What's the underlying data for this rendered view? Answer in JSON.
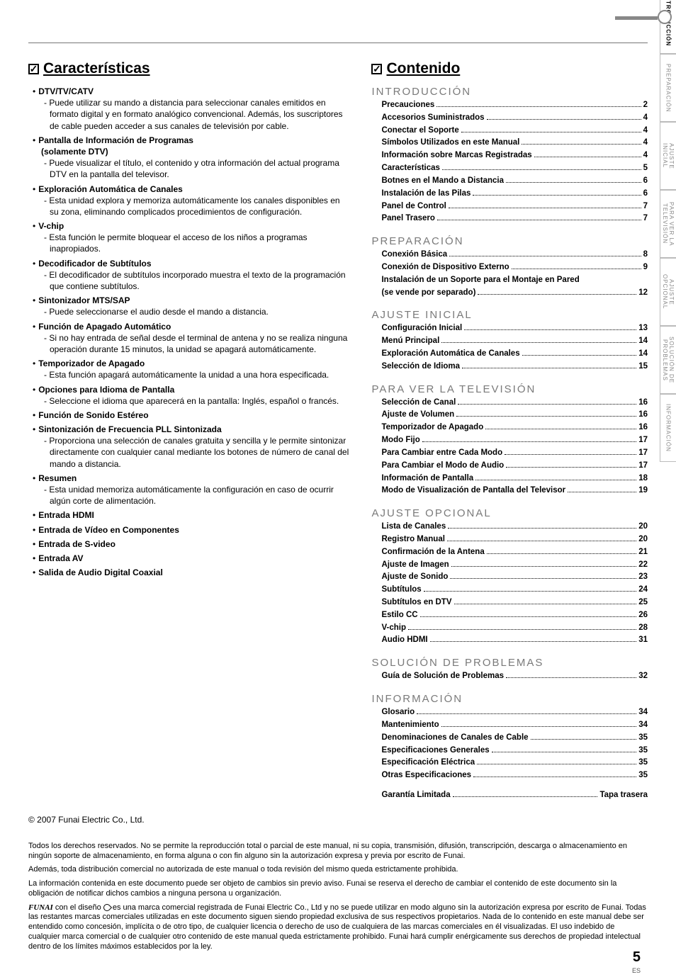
{
  "headings": {
    "features": "Características",
    "contents": "Contenido"
  },
  "features": [
    {
      "title": "DTV/TV/CATV",
      "desc": "- Puede utilizar su mando a distancia para seleccionar canales emitidos en formato digital y en formato analógico convencional. Además, los suscriptores de cable pueden acceder a sus canales de televisión por cable."
    },
    {
      "title": "Pantalla de Información de Programas",
      "sub": "(solamente DTV)",
      "desc": "- Puede visualizar el título, el contenido y otra información del actual programa DTV en la pantalla del televisor."
    },
    {
      "title": "Exploración Automática de Canales",
      "desc": "- Esta unidad explora y memoriza automáticamente los canales disponibles en su zona, eliminando complicados procedimientos de configuración."
    },
    {
      "title": "V-chip",
      "desc": "- Esta función le permite bloquear el acceso de los niños a programas inapropiados."
    },
    {
      "title": "Decodificador de Subtítulos",
      "desc": "- El decodificador de subtítulos incorporado muestra el texto de la programación que contiene subtítulos."
    },
    {
      "title": "Sintonizador MTS/SAP",
      "desc": "- Puede seleccionarse el audio desde el mando a distancia."
    },
    {
      "title": "Función de Apagado Automático",
      "desc": "- Si no hay entrada de señal desde el terminal de antena y no se realiza ninguna operación durante 15 minutos, la unidad se apagará automáticamente."
    },
    {
      "title": "Temporizador de Apagado",
      "desc": "- Esta función apagará automáticamente la unidad a una hora especificada."
    },
    {
      "title": "Opciones para Idioma de Pantalla",
      "desc": "- Seleccione el idioma que aparecerá en la pantalla: Inglés, español o francés."
    },
    {
      "title": "Función de Sonido Estéreo"
    },
    {
      "title": "Sintonización de Frecuencia PLL Sintonizada",
      "desc": "- Proporciona una selección de canales gratuita y sencilla y le permite sintonizar directamente con cualquier canal mediante los botones de número de canal del mando a distancia."
    },
    {
      "title": "Resumen",
      "desc": "- Esta unidad memoriza automáticamente la configuración en caso de ocurrir algún corte de alimentación."
    },
    {
      "title": "Entrada HDMI"
    },
    {
      "title": "Entrada de Vídeo en Componentes"
    },
    {
      "title": "Entrada de S-video"
    },
    {
      "title": "Entrada AV"
    },
    {
      "title": "Salida de Audio Digital Coaxial"
    }
  ],
  "toc": [
    {
      "heading": "INTRODUCCIÓN",
      "items": [
        {
          "label": "Precauciones",
          "page": "2"
        },
        {
          "label": "Accesorios Suministrados",
          "page": "4"
        },
        {
          "label": "Conectar el Soporte",
          "page": "4"
        },
        {
          "label": "Símbolos Utilizados en este Manual",
          "page": "4"
        },
        {
          "label": "Información sobre Marcas Registradas",
          "page": "4"
        },
        {
          "label": "Características",
          "page": "5"
        },
        {
          "label": "Botnes en el Mando a Distancia",
          "page": "6"
        },
        {
          "label": "Instalación de las Pilas",
          "page": "6"
        },
        {
          "label": "Panel de Control",
          "page": "7"
        },
        {
          "label": "Panel Trasero",
          "page": "7"
        }
      ]
    },
    {
      "heading": "PREPARACIÓN",
      "items": [
        {
          "label": "Conexión Básica",
          "page": "8"
        },
        {
          "label": "Conexión de Dispositivo Externo",
          "page": "9"
        },
        {
          "label": "Instalación de un Soporte para el Montaje en Pared",
          "sub": true
        },
        {
          "label": "(se vende por separado)",
          "page": "12"
        }
      ]
    },
    {
      "heading": "AJUSTE INICIAL",
      "items": [
        {
          "label": "Configuración Inicial",
          "page": "13"
        },
        {
          "label": "Menú Principal",
          "page": "14"
        },
        {
          "label": "Exploración Automática de Canales",
          "page": "14"
        },
        {
          "label": "Selección de Idioma",
          "page": "15"
        }
      ]
    },
    {
      "heading": "PARA VER LA TELEVISIÓN",
      "items": [
        {
          "label": "Selección de Canal",
          "page": "16"
        },
        {
          "label": "Ajuste de Volumen",
          "page": "16"
        },
        {
          "label": "Temporizador de Apagado",
          "page": "16"
        },
        {
          "label": "Modo Fijo",
          "page": "17"
        },
        {
          "label": "Para Cambiar entre Cada Modo",
          "page": "17"
        },
        {
          "label": "Para Cambiar el Modo de Audio",
          "page": "17"
        },
        {
          "label": "Información de Pantalla",
          "page": "18"
        },
        {
          "label": "Modo de Visualización de Pantalla del Televisor",
          "page": "19"
        }
      ]
    },
    {
      "heading": "AJUSTE OPCIONAL",
      "items": [
        {
          "label": "Lista de Canales",
          "page": "20"
        },
        {
          "label": "Registro Manual",
          "page": "20"
        },
        {
          "label": "Confirmación de la Antena",
          "page": "21"
        },
        {
          "label": "Ajuste de Imagen",
          "page": "22"
        },
        {
          "label": "Ajuste de Sonido",
          "page": "23"
        },
        {
          "label": "Subtítulos",
          "page": "24"
        },
        {
          "label": "Subtítulos en DTV",
          "page": "25"
        },
        {
          "label": "Estilo CC",
          "page": "26"
        },
        {
          "label": "V-chip",
          "page": "28"
        },
        {
          "label": "Audio HDMI",
          "page": "31"
        }
      ]
    },
    {
      "heading": "SOLUCIÓN DE PROBLEMAS",
      "items": [
        {
          "label": "Guía de Solución de Problemas",
          "page": "32"
        }
      ]
    },
    {
      "heading": "INFORMACIÓN",
      "items": [
        {
          "label": "Glosario",
          "page": "34"
        },
        {
          "label": "Mantenimiento",
          "page": "34"
        },
        {
          "label": "Denominaciones de Canales de Cable",
          "page": "35"
        },
        {
          "label": "Especificaciones Generales",
          "page": "35"
        },
        {
          "label": "Especificación Eléctrica",
          "page": "35"
        },
        {
          "label": "Otras Especificaciones",
          "page": "35"
        }
      ]
    }
  ],
  "warranty": {
    "label": "Garantía Limitada",
    "page": "Tapa trasera"
  },
  "side_tabs": [
    "INTRODUCCIÓN",
    "PREPARACIÓN",
    "AJUSTE INICIAL",
    "PARA VER LA TELEVISIÓN",
    "AJUSTE OPCIONAL",
    "SOLUCIÓN DE PROBLEMAS",
    "INFORMACIÓN"
  ],
  "legal": {
    "copyright": "© 2007 Funai Electric Co., Ltd.",
    "p1": "Todos los derechos reservados. No se permite la reproducción total o parcial de este manual, ni su copia, transmisión, difusión, transcripción, descarga o almacenamiento en ningún soporte de almacenamiento, en forma alguna o con fin alguno sin la autorización expresa y previa por escrito de Funai.",
    "p2": "Además, toda distribución comercial no autorizada de este manual o toda revisión del mismo queda estrictamente prohibida.",
    "p3": "La información contenida en este documento puede ser objeto de cambios sin previo aviso. Funai se reserva el derecho de cambiar el contenido de este documento sin la obligación de notificar dichos cambios a ninguna persona u organización.",
    "p4a": "FUNAI",
    "p4b": " con el diseño ",
    "p4c": " es una marca comercial registrada de Funai Electric Co., Ltd y no se puede utilizar en modo alguno sin la autorización expresa por escrito de Funai. Todas las restantes marcas comerciales utilizadas en este documento siguen siendo propiedad exclusiva de sus respectivos propietarios. Nada de lo contenido en este manual debe ser entendido como concesión, implícita o de otro tipo, de cualquier licencia o derecho de uso de cualquiera de las marcas comerciales en él visualizadas. El uso indebido de cualquier marca comercial o de cualquier otro contenido de este manual queda estrictamente prohibido. Funai hará cumplir enérgicamente sus derechos de propiedad intelectual dentro de los límites máximos establecidos por la ley."
  },
  "page_number": "5",
  "es_label": "ES"
}
